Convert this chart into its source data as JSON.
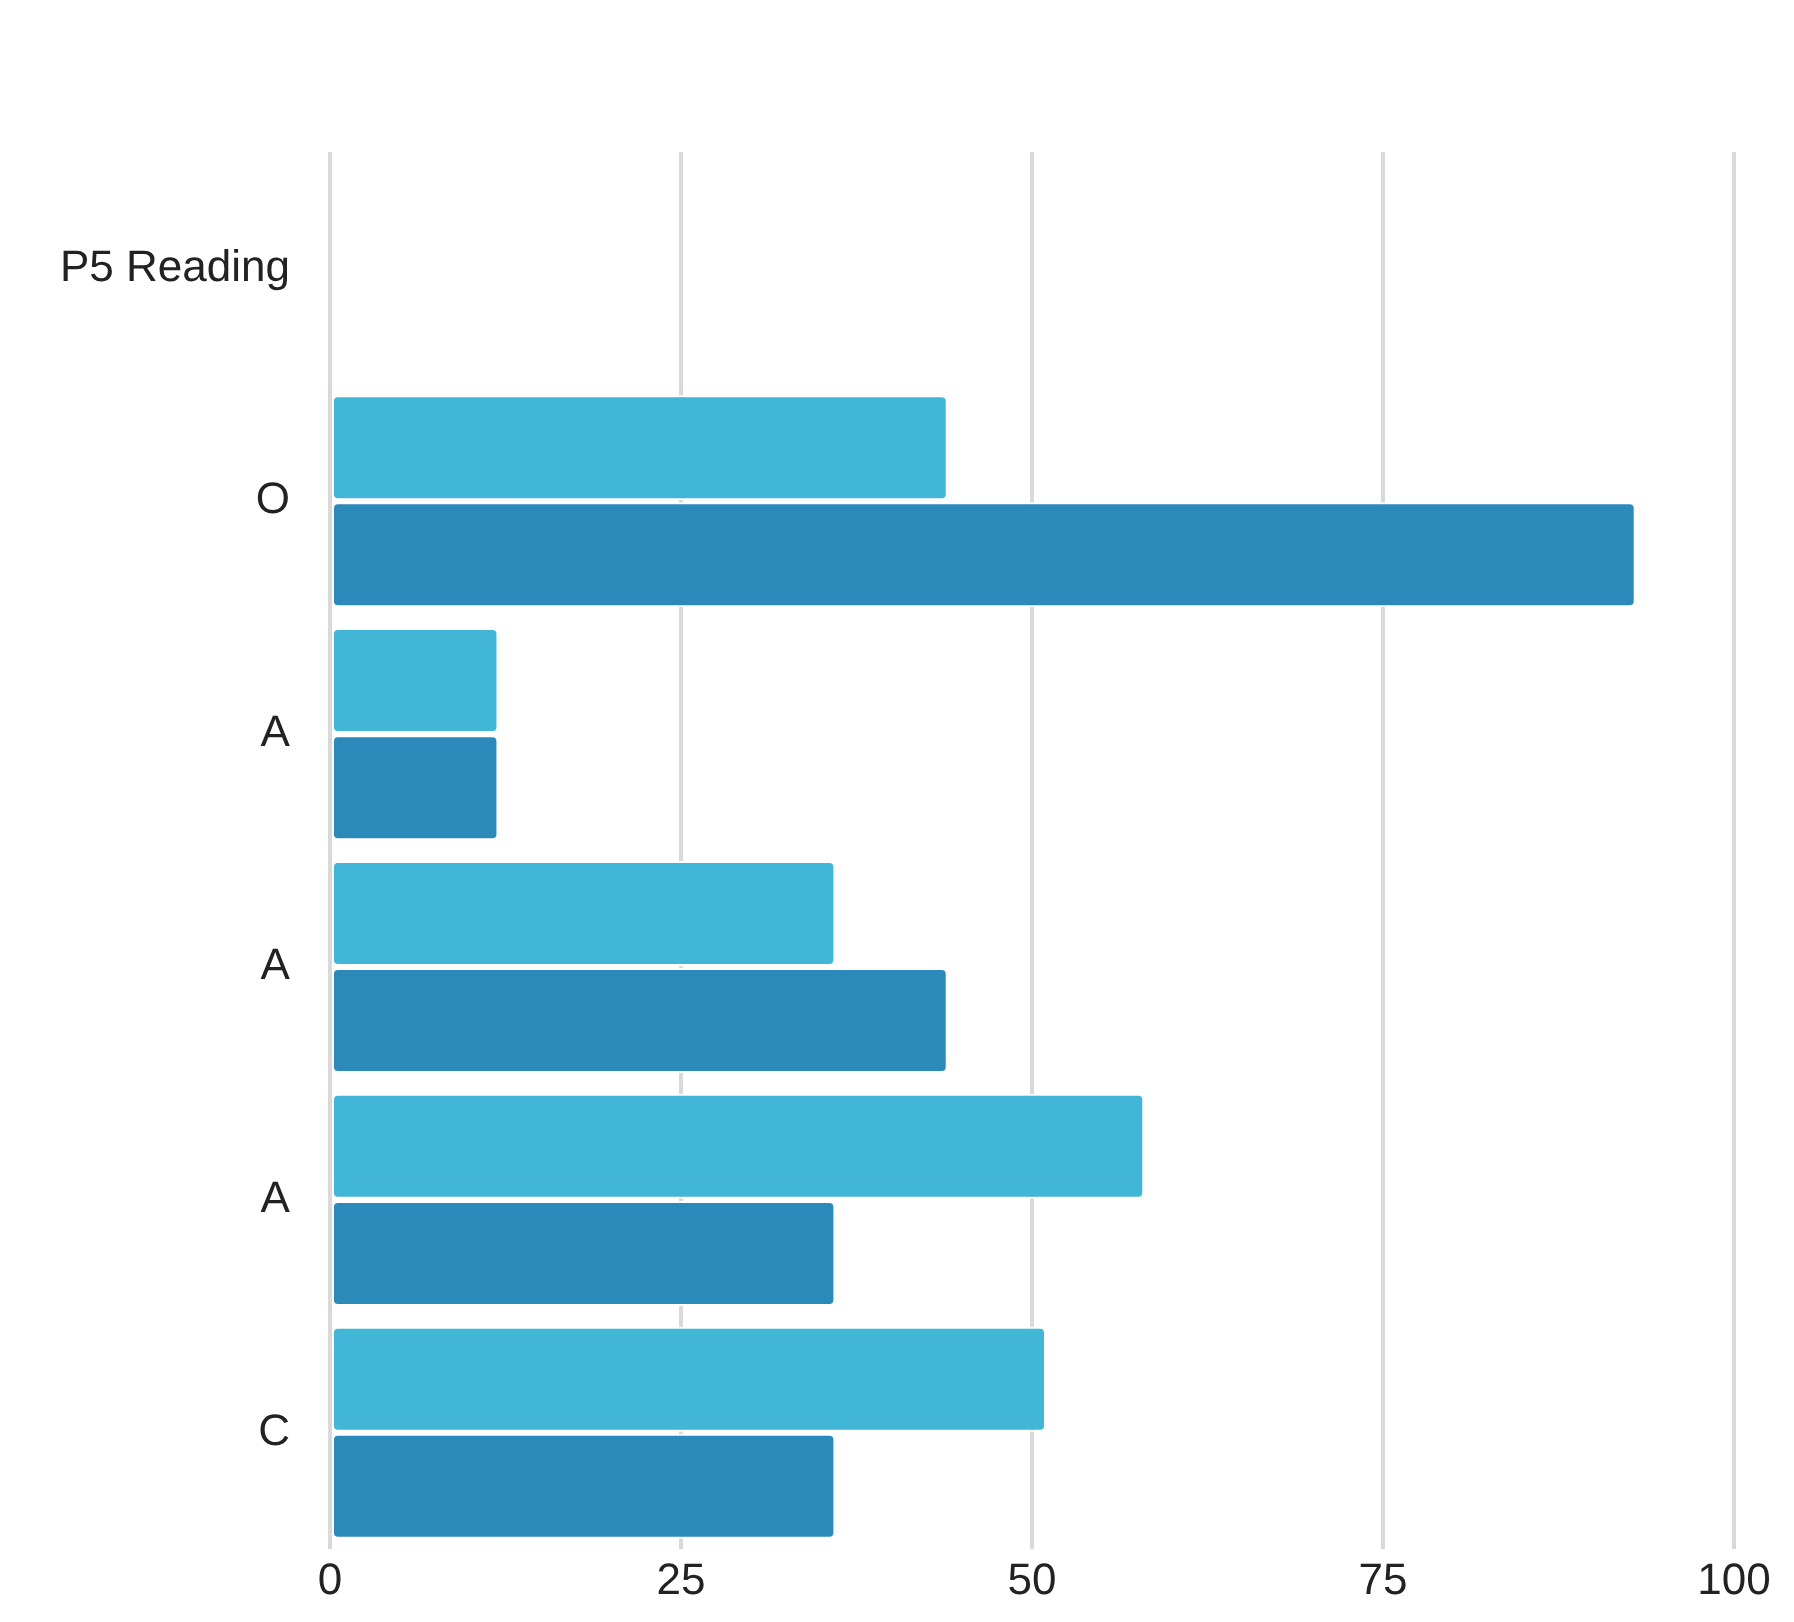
{
  "chart_data": {
    "type": "bar",
    "orientation": "horizontal",
    "categories": [
      "P5 Reading",
      "O",
      "A",
      "A",
      "A",
      "C"
    ],
    "series": [
      {
        "color": "#41b6d6",
        "values": [
          null,
          44,
          12,
          36,
          58,
          51
        ]
      },
      {
        "color": "#2b8aba",
        "values": [
          null,
          93,
          12,
          44,
          36,
          36
        ]
      }
    ],
    "xlim": [
      0,
      100
    ],
    "xticks": [
      0,
      25,
      50,
      75,
      100
    ],
    "grid": "x",
    "legend": false
  }
}
